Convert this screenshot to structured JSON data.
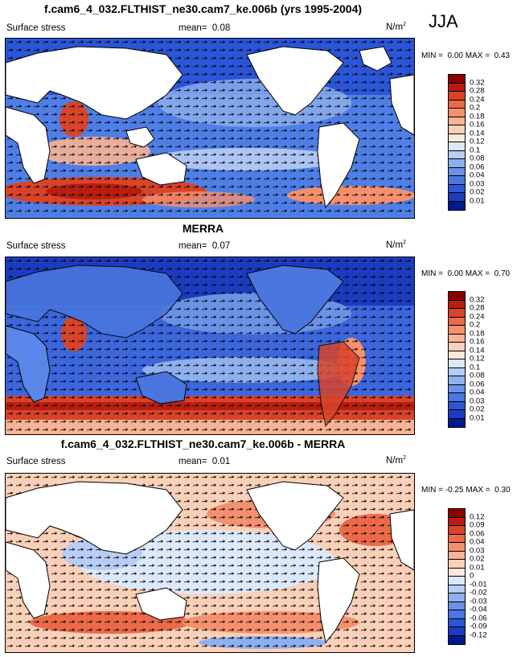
{
  "season": "JJA",
  "colors": {
    "ocean_strong": "#1f4fd8",
    "ocean_mid": "#5a86ea",
    "ocean_light": "#a9c2f2",
    "land": "#ffffff",
    "warm_strong": "#d8442a",
    "warm_mid": "#f08060",
    "warm_light": "#f9c3aa"
  },
  "panels": [
    {
      "title": "f.cam6_4_032.FLTHIST_ne30.cam7_ke.006b (yrs 1995-2004)",
      "variable": "Surface stress",
      "mean_label": "mean=",
      "mean_value": "0.08",
      "units": "N/m",
      "units_sup": "2",
      "min_label": "MIN =",
      "min_value": "0.00",
      "max_label": "MAX =",
      "max_value": "0.43",
      "levels": [
        "0.32",
        "0.28",
        "0.24",
        "0.2",
        "0.18",
        "0.16",
        "0.14",
        "0.12",
        "0.1",
        "0.08",
        "0.06",
        "0.04",
        "0.03",
        "0.02",
        "0.01"
      ],
      "palette": [
        "#8b0000",
        "#b81e10",
        "#d8442a",
        "#ec6a48",
        "#f5906e",
        "#f8b394",
        "#fbd0b8",
        "#fde9dc",
        "#dce8fb",
        "#b7cdf5",
        "#8fb0ee",
        "#6a92e6",
        "#4a76df",
        "#2b57d4",
        "#1b3cbf",
        "#001a8c"
      ]
    },
    {
      "title": "MERRA",
      "variable": "Surface stress",
      "mean_label": "mean=",
      "mean_value": "0.07",
      "units": "N/m",
      "units_sup": "2",
      "min_label": "MIN =",
      "min_value": "0.00",
      "max_label": "MAX =",
      "max_value": "0.70",
      "levels": [
        "0.32",
        "0.28",
        "0.24",
        "0.2",
        "0.18",
        "0.16",
        "0.14",
        "0.12",
        "0.1",
        "0.08",
        "0.06",
        "0.04",
        "0.03",
        "0.02",
        "0.01"
      ],
      "palette": [
        "#8b0000",
        "#b81e10",
        "#d8442a",
        "#ec6a48",
        "#f5906e",
        "#f8b394",
        "#fbd0b8",
        "#fde9dc",
        "#dce8fb",
        "#b7cdf5",
        "#8fb0ee",
        "#6a92e6",
        "#4a76df",
        "#2b57d4",
        "#1b3cbf",
        "#001a8c"
      ]
    },
    {
      "title": "f.cam6_4_032.FLTHIST_ne30.cam7_ke.006b - MERRA",
      "variable": "Surface stress",
      "mean_label": "mean=",
      "mean_value": "0.01",
      "units": "N/m",
      "units_sup": "2",
      "min_label": "MIN =",
      "min_value": "-0.25",
      "max_label": "MAX =",
      "max_value": "0.30",
      "levels": [
        "0.12",
        "0.09",
        "0.06",
        "0.04",
        "0.03",
        "0.02",
        "0.01",
        "0",
        "-0.01",
        "-0.02",
        "-0.03",
        "-0.04",
        "-0.06",
        "-0.09",
        "-0.12"
      ],
      "palette": [
        "#8b0000",
        "#b81e10",
        "#d8442a",
        "#ec6a48",
        "#f5906e",
        "#f8b394",
        "#fbd0b8",
        "#fde9dc",
        "#dce8fb",
        "#b7cdf5",
        "#8fb0ee",
        "#6a92e6",
        "#4a76df",
        "#2b57d4",
        "#1b3cbf",
        "#001a8c"
      ]
    }
  ]
}
